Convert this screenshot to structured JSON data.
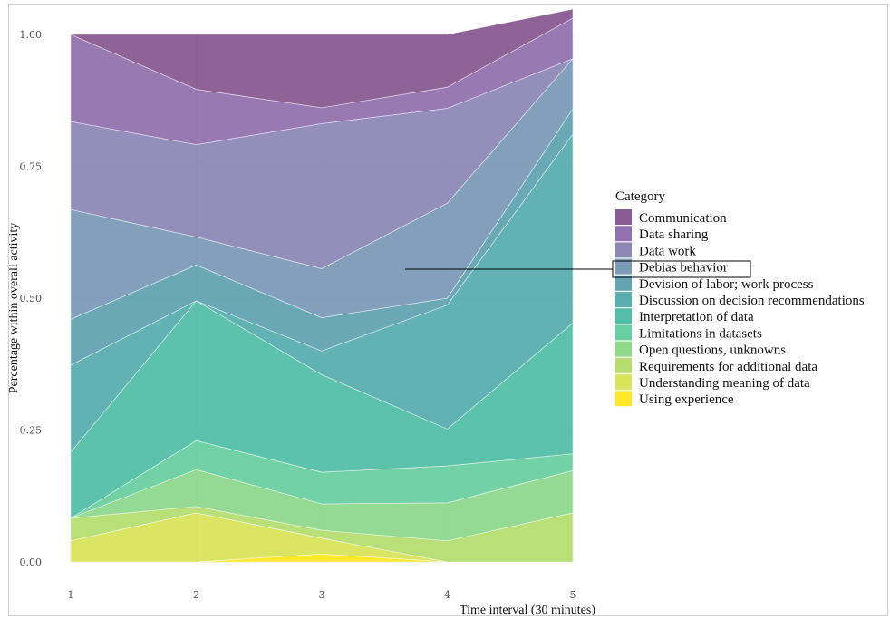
{
  "chart_data": {
    "type": "area",
    "stacked": true,
    "normalized": true,
    "xlabel": "Time interval (30 minutes)",
    "ylabel": "Percentage within overall activity",
    "x": [
      1,
      2,
      3,
      4,
      5
    ],
    "xticks": [
      "1",
      "2",
      "3",
      "4",
      "5"
    ],
    "yticks": [
      "0.00",
      "0.25",
      "0.50",
      "0.75",
      "1.00"
    ],
    "ylim": [
      0,
      1
    ],
    "grid": true,
    "legend": {
      "title": "Category",
      "position": "right",
      "highlighted": "Debias behavior"
    },
    "series": [
      {
        "name": "Using experience",
        "color": "#fde725",
        "values": [
          0.0,
          0.0,
          0.015,
          0.0,
          0.0
        ]
      },
      {
        "name": "Understanding meaning of data",
        "color": "#d8e45c",
        "values": [
          0.04,
          0.093,
          0.03,
          0.0,
          0.0
        ]
      },
      {
        "name": "Requirements for additional data",
        "color": "#b5dd72",
        "values": [
          0.043,
          0.012,
          0.015,
          0.04,
          0.093
        ]
      },
      {
        "name": "Open questions, unknowns",
        "color": "#8fd88c",
        "values": [
          0.0,
          0.07,
          0.05,
          0.072,
          0.08
        ]
      },
      {
        "name": "Limitations in datasets",
        "color": "#6acfa0",
        "values": [
          0.0,
          0.055,
          0.06,
          0.07,
          0.032
        ]
      },
      {
        "name": "Interpretation of data",
        "color": "#54bfa6",
        "values": [
          0.125,
          0.265,
          0.185,
          0.07,
          0.248
        ]
      },
      {
        "name": "Discussion on decision recommendations",
        "color": "#5aaeaf",
        "values": [
          0.165,
          0.0,
          0.045,
          0.235,
          0.358
        ]
      },
      {
        "name": "Devision of labor; work process",
        "color": "#63a3b2",
        "values": [
          0.087,
          0.068,
          0.063,
          0.013,
          0.048
        ]
      },
      {
        "name": "Debias behavior",
        "color": "#7b9bb8",
        "values": [
          0.208,
          0.053,
          0.093,
          0.18,
          0.095
        ]
      },
      {
        "name": "Data work",
        "color": "#8e88b6",
        "values": [
          0.167,
          0.175,
          0.275,
          0.18,
          0.0
        ]
      },
      {
        "name": "Data sharing",
        "color": "#9272ae",
        "values": [
          0.165,
          0.105,
          0.03,
          0.04,
          0.077
        ]
      },
      {
        "name": "Communication",
        "color": "#8a5b92",
        "values": [
          0.0,
          0.104,
          0.139,
          0.1,
          0.017
        ]
      }
    ]
  }
}
